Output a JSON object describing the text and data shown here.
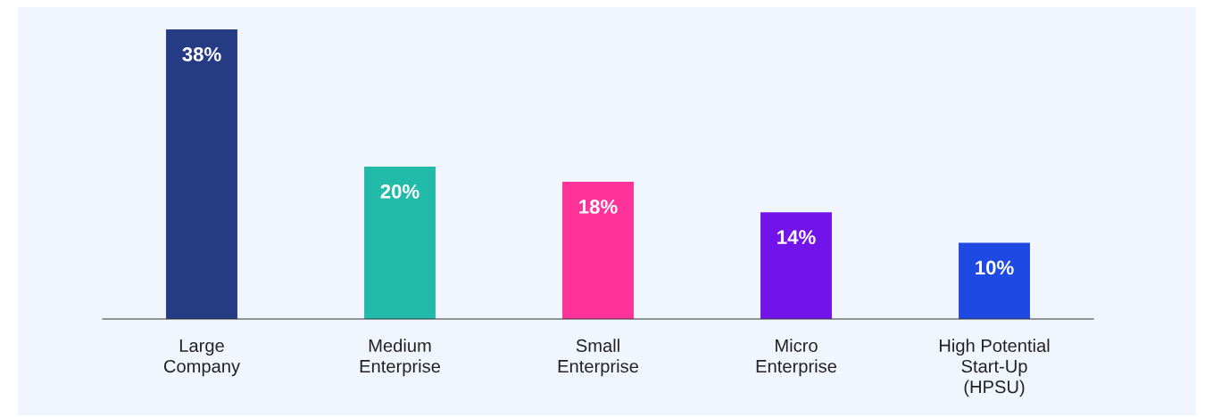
{
  "chart_data": {
    "type": "bar",
    "categories": [
      "Large\nCompany",
      "Medium\nEnterprise",
      "Small\nEnterprise",
      "Micro\nEnterprise",
      "High Potential\nStart-Up\n(HPSU)"
    ],
    "values": [
      38,
      20,
      18,
      14,
      10
    ],
    "value_labels": [
      "38%",
      "20%",
      "18%",
      "14%",
      "10%"
    ],
    "colors": [
      "#253c85",
      "#22baa9",
      "#fe3399",
      "#7213ea",
      "#1e49e2"
    ]
  }
}
